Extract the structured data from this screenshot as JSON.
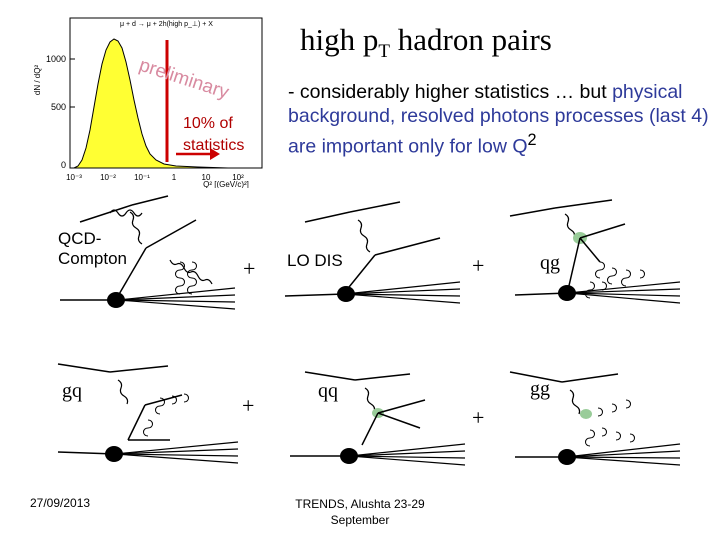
{
  "title": {
    "main": "high p",
    "sub": "T",
    "rest": " hadron pairs"
  },
  "bullet": {
    "part1": "- considerably higher statistics … but ",
    "part2": "physical background, resolved photons processes (last 4) are important only for low Q",
    "sup": "2"
  },
  "plot": {
    "legend": "μ + d → μ + 2h(high p_⊥) + X",
    "ylabel": "dN / dQ²",
    "xlabel": "Q² [(GeV/c)²]",
    "yticks": [
      "1000",
      "500",
      "0"
    ],
    "xticks": [
      "10⁻³",
      "10⁻²",
      "10⁻¹",
      "1",
      "10",
      "10²"
    ],
    "watermark": "preliminary",
    "cut_label_1": "10% of",
    "cut_label_2": "statistics"
  },
  "diagrams": {
    "qcd_compton_1": "QCD-",
    "qcd_compton_2": "Compton",
    "lo_dis": "LO DIS",
    "qg": "qg",
    "gq": "gq",
    "qq": "qq",
    "gg": "gg",
    "plus": "+"
  },
  "footer": {
    "date": "27/09/2013",
    "conf_1": "TRENDS, Alushta 23-29",
    "conf_2": "September"
  },
  "colors": {
    "fill": "#ffff33",
    "cut": "#cc0000",
    "watermark": "#d88aa0",
    "blue": "#2e3a9a"
  }
}
